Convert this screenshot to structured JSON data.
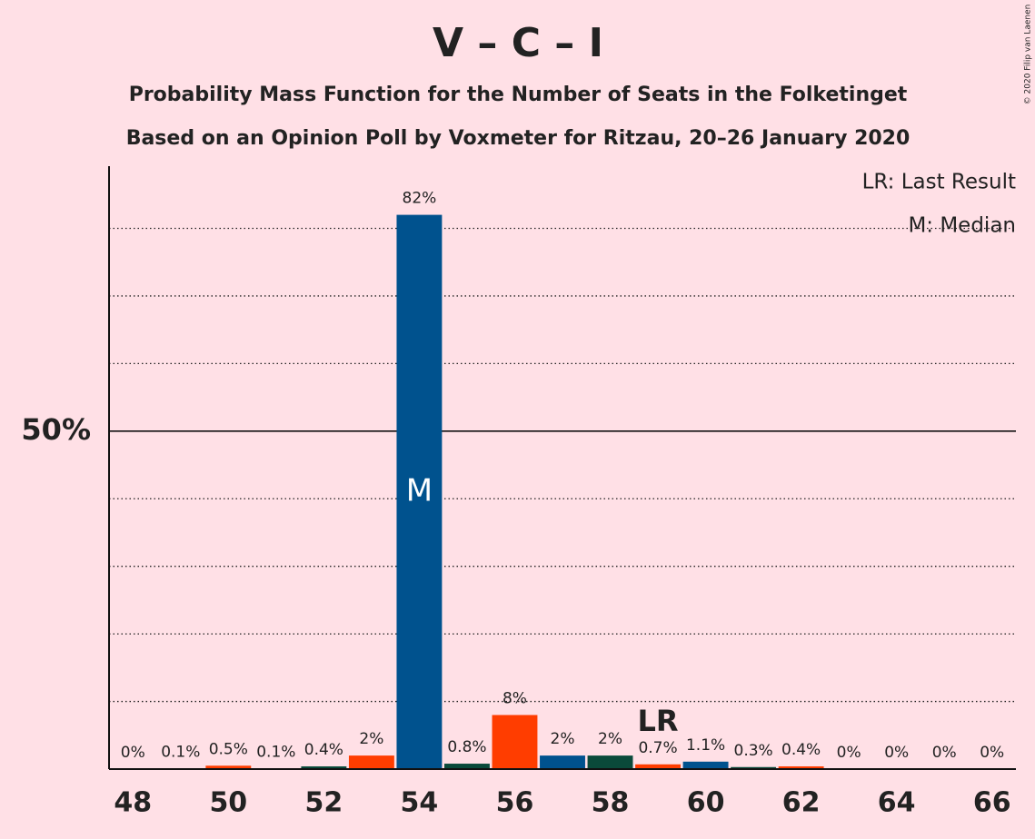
{
  "chart_data": {
    "type": "bar",
    "title": "V – C – I",
    "subtitle": "Probability Mass Function for the Number of Seats in the Folketinget",
    "subtitle2": "Based on an Opinion Poll by Voxmeter for Ritzau, 20–26 January 2020",
    "credit": "© 2020 Filip van Laenen",
    "x": [
      48,
      49,
      50,
      51,
      52,
      53,
      54,
      55,
      56,
      57,
      58,
      59,
      60,
      61,
      62,
      63,
      64,
      65,
      66
    ],
    "values": [
      0,
      0.1,
      0.5,
      0.1,
      0.4,
      2,
      82,
      0.8,
      8,
      2,
      2,
      0.7,
      1.1,
      0.3,
      0.4,
      0,
      0,
      0,
      0
    ],
    "value_labels": [
      "0%",
      "0.1%",
      "0.5%",
      "0.1%",
      "0.4%",
      "2%",
      "82%",
      "0.8%",
      "8%",
      "2%",
      "2%",
      "0.7%",
      "1.1%",
      "0.3%",
      "0.4%",
      "0%",
      "0%",
      "0%",
      "0%"
    ],
    "colors": [
      "#00528e",
      "#0a4a3a",
      "#ff3d00"
    ],
    "xlim": [
      47.5,
      66.5
    ],
    "xticks": [
      48,
      50,
      52,
      54,
      56,
      58,
      60,
      62,
      64,
      66
    ],
    "ylim": [
      0,
      89.2
    ],
    "yticks": [
      {
        "value": 50,
        "label": "50%"
      }
    ],
    "grid_lines": [
      10,
      20,
      30,
      40,
      60,
      70,
      80
    ],
    "median": {
      "x": 54,
      "label": "M"
    },
    "last_result": {
      "x": 59,
      "label": "LR"
    },
    "legend": [
      "LR: Last Result",
      "M: Median"
    ]
  }
}
